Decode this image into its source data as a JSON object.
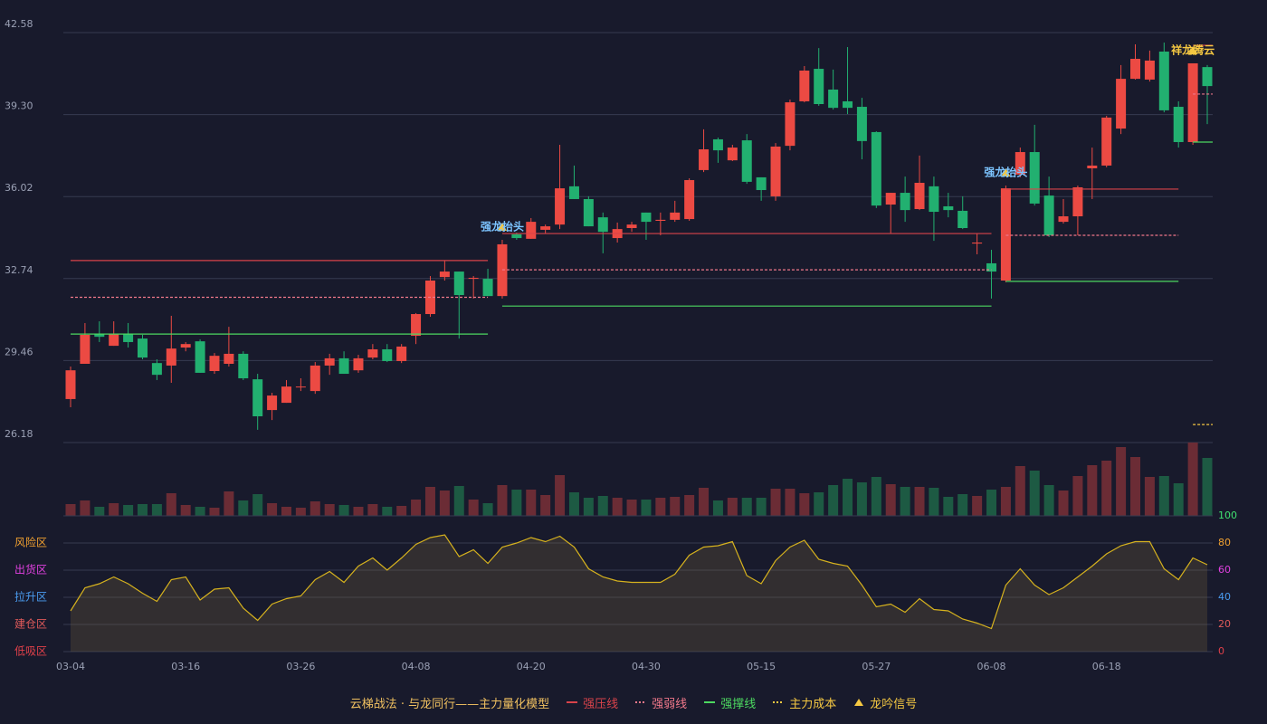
{
  "chart_data": {
    "type": "candlestick",
    "categories": [
      "03-04",
      null,
      null,
      null,
      null,
      null,
      null,
      null,
      "03-16",
      null,
      null,
      null,
      null,
      null,
      null,
      null,
      "03-26",
      null,
      null,
      null,
      null,
      null,
      null,
      null,
      "04-08",
      null,
      null,
      null,
      null,
      null,
      null,
      null,
      "04-20",
      null,
      null,
      null,
      null,
      null,
      null,
      null,
      "04-30",
      null,
      null,
      null,
      null,
      null,
      null,
      null,
      "05-15",
      null,
      null,
      null,
      null,
      null,
      null,
      null,
      "05-27",
      null,
      null,
      null,
      null,
      null,
      null,
      null,
      "06-08",
      null,
      null,
      null,
      null,
      null,
      null,
      null,
      "06-18",
      null,
      null,
      null,
      null,
      null,
      null,
      null
    ],
    "open": [
      27.92,
      29.33,
      30.52,
      30.05,
      30.52,
      30.34,
      29.36,
      29.26,
      29.98,
      30.23,
      29.04,
      29.33,
      29.73,
      28.71,
      27.48,
      27.77,
      28.39,
      28.24,
      29.26,
      29.55,
      29.07,
      29.58,
      29.91,
      29.44,
      30.45,
      31.32,
      32.8,
      33.02,
      32.73,
      32.73,
      32.04,
      34.51,
      34.33,
      34.69,
      34.9,
      36.43,
      35.92,
      35.19,
      34.36,
      34.76,
      35.38,
      35.05,
      35.09,
      35.12,
      37.08,
      38.31,
      37.47,
      38.27,
      36.79,
      36.03,
      38.05,
      39.83,
      41.13,
      40.3,
      39.83,
      39.61,
      38.6,
      35.7,
      36.17,
      35.52,
      36.43,
      35.63,
      35.45,
      34.14,
      33.35,
      32.66,
      36.9,
      37.8,
      36.06,
      35.01,
      35.23,
      37.15,
      37.26,
      38.74,
      40.73,
      40.7,
      41.82,
      39.61,
      38.2,
      41.2
    ],
    "high": [
      29.22,
      30.96,
      31.03,
      31.03,
      30.96,
      30.49,
      29.51,
      31.25,
      30.2,
      30.31,
      29.76,
      30.81,
      29.83,
      28.93,
      28.17,
      28.68,
      28.75,
      29.4,
      29.73,
      29.83,
      29.69,
      30.12,
      30.12,
      30.12,
      31.36,
      32.84,
      33.46,
      33.02,
      32.84,
      33.13,
      34.29,
      34.58,
      35.16,
      34.9,
      38.09,
      37.26,
      36.03,
      35.38,
      34.98,
      35.01,
      35.38,
      35.38,
      35.85,
      36.75,
      38.71,
      38.38,
      38.09,
      38.52,
      36.79,
      38.16,
      39.9,
      41.24,
      41.96,
      41.1,
      42.0,
      39.97,
      38.63,
      36.17,
      36.82,
      37.66,
      36.82,
      36.17,
      36.03,
      34.54,
      33.89,
      36.46,
      37.98,
      38.89,
      36.82,
      35.92,
      36.46,
      37.98,
      39.25,
      41.28,
      42.11,
      41.86,
      42.18,
      39.83,
      41.35,
      41.28
    ],
    "low": [
      27.59,
      29.33,
      30.2,
      30.05,
      29.98,
      29.51,
      28.68,
      28.57,
      29.83,
      28.97,
      28.93,
      29.22,
      28.68,
      26.69,
      27.08,
      27.77,
      28.24,
      28.13,
      28.89,
      28.93,
      28.97,
      29.51,
      29.4,
      29.36,
      30.12,
      31.21,
      32.66,
      30.34,
      31.94,
      32.04,
      31.94,
      34.29,
      34.33,
      34.54,
      34.72,
      35.92,
      34.83,
      33.75,
      34.18,
      34.61,
      34.29,
      34.47,
      35.01,
      35.05,
      37.0,
      37.37,
      37.44,
      36.53,
      35.85,
      35.85,
      37.87,
      39.79,
      39.65,
      39.5,
      39.32,
      37.51,
      35.56,
      34.54,
      35.01,
      35.48,
      34.25,
      35.19,
      34.72,
      33.71,
      31.94,
      32.59,
      36.79,
      35.66,
      34.4,
      34.94,
      34.47,
      35.92,
      37.19,
      38.52,
      40.7,
      40.62,
      39.39,
      37.98,
      38.09,
      38.92
    ],
    "close": [
      29.07,
      30.49,
      30.41,
      30.52,
      30.2,
      29.58,
      28.89,
      29.94,
      30.12,
      28.97,
      29.65,
      29.73,
      28.75,
      27.23,
      28.06,
      28.42,
      28.42,
      29.26,
      29.55,
      28.93,
      29.55,
      29.91,
      29.44,
      30.02,
      31.32,
      32.66,
      33.02,
      32.08,
      32.77,
      32.04,
      34.11,
      34.36,
      35.01,
      34.83,
      36.35,
      35.92,
      34.83,
      34.61,
      34.72,
      34.9,
      35.01,
      35.09,
      35.38,
      36.68,
      37.91,
      37.87,
      37.98,
      36.61,
      36.28,
      38.02,
      39.79,
      41.06,
      39.72,
      39.57,
      39.57,
      38.24,
      35.66,
      36.17,
      35.48,
      36.57,
      35.41,
      35.48,
      34.76,
      34.18,
      33.02,
      36.35,
      37.8,
      35.74,
      34.47,
      35.23,
      36.39,
      37.26,
      39.18,
      40.73,
      41.53,
      41.46,
      39.47,
      38.2,
      41.35,
      40.44
    ],
    "ylim": [
      26.18,
      42.58
    ],
    "yticks": [
      26.18,
      29.46,
      32.74,
      36.02,
      {
        "value": 39.3,
        "label": "39.30"
      },
      42.58
    ],
    "grid": true,
    "up_color": "#ec4a43",
    "down_color": "#22b070",
    "levels": [
      {
        "name": "强压线",
        "color": "#d8434a",
        "dashed": false,
        "values": [
          33.46,
          33.46,
          33.46,
          33.46,
          33.46,
          33.46,
          33.46,
          33.46,
          33.46,
          33.46,
          33.46,
          33.46,
          33.46,
          33.46,
          33.46,
          33.46,
          33.46,
          33.46,
          33.46,
          33.46,
          33.46,
          33.46,
          33.46,
          33.46,
          33.46,
          33.46,
          33.46,
          33.46,
          33.46,
          33.46,
          34.54,
          34.54,
          34.54,
          34.54,
          34.54,
          34.54,
          34.54,
          34.54,
          34.54,
          34.54,
          34.54,
          34.54,
          34.54,
          34.54,
          34.54,
          34.54,
          34.54,
          34.54,
          34.54,
          34.54,
          34.54,
          34.54,
          34.54,
          34.54,
          34.54,
          34.54,
          34.54,
          34.54,
          34.54,
          34.54,
          34.54,
          34.54,
          34.54,
          34.54,
          34.54,
          36.32,
          36.32,
          36.32,
          36.32,
          36.32,
          36.32,
          36.32,
          36.32,
          36.32,
          36.32,
          36.32,
          36.32,
          36.32,
          42.07,
          42.07
        ]
      },
      {
        "name": "强弱线",
        "color": "#f0788a",
        "dashed": true,
        "values": [
          31.99,
          31.99,
          31.99,
          31.99,
          31.99,
          31.99,
          31.99,
          31.99,
          31.99,
          31.99,
          31.99,
          31.99,
          31.99,
          31.99,
          31.99,
          31.99,
          31.99,
          31.99,
          31.99,
          31.99,
          31.99,
          31.99,
          31.99,
          31.99,
          31.99,
          31.99,
          31.99,
          31.99,
          31.99,
          31.99,
          33.09,
          33.09,
          33.09,
          33.09,
          33.09,
          33.09,
          33.09,
          33.09,
          33.09,
          33.09,
          33.09,
          33.09,
          33.09,
          33.09,
          33.09,
          33.09,
          33.09,
          33.09,
          33.09,
          33.09,
          33.09,
          33.09,
          33.09,
          33.09,
          33.09,
          33.09,
          33.09,
          33.09,
          33.09,
          33.09,
          33.09,
          33.09,
          33.09,
          33.09,
          33.09,
          34.47,
          34.47,
          34.47,
          34.47,
          34.47,
          34.47,
          34.47,
          34.47,
          34.47,
          34.47,
          34.47,
          34.47,
          34.47,
          40.12,
          40.12
        ]
      },
      {
        "name": "强撑线",
        "color": "#4cd860",
        "dashed": false,
        "values": [
          30.52,
          30.52,
          30.52,
          30.52,
          30.52,
          30.52,
          30.52,
          30.52,
          30.52,
          30.52,
          30.52,
          30.52,
          30.52,
          30.52,
          30.52,
          30.52,
          30.52,
          30.52,
          30.52,
          30.52,
          30.52,
          30.52,
          30.52,
          30.52,
          30.52,
          30.52,
          30.52,
          30.52,
          30.52,
          30.52,
          31.64,
          31.64,
          31.64,
          31.64,
          31.64,
          31.64,
          31.64,
          31.64,
          31.64,
          31.64,
          31.64,
          31.64,
          31.64,
          31.64,
          31.64,
          31.64,
          31.64,
          31.64,
          31.64,
          31.64,
          31.64,
          31.64,
          31.64,
          31.64,
          31.64,
          31.64,
          31.64,
          31.64,
          31.64,
          31.64,
          31.64,
          31.64,
          31.64,
          31.64,
          31.64,
          32.63,
          32.63,
          32.63,
          32.63,
          32.63,
          32.63,
          32.63,
          32.63,
          32.63,
          32.63,
          32.63,
          32.63,
          32.63,
          38.2,
          38.2
        ]
      },
      {
        "name": "主力成本",
        "color": "#f5c842",
        "dashed": true,
        "values": [
          null,
          null,
          null,
          null,
          null,
          null,
          null,
          null,
          null,
          null,
          null,
          null,
          null,
          null,
          null,
          null,
          null,
          null,
          null,
          null,
          null,
          null,
          null,
          null,
          null,
          null,
          null,
          null,
          null,
          null,
          null,
          null,
          null,
          null,
          null,
          null,
          null,
          null,
          null,
          null,
          null,
          null,
          null,
          null,
          null,
          null,
          null,
          null,
          null,
          null,
          null,
          null,
          null,
          null,
          null,
          null,
          null,
          null,
          null,
          null,
          null,
          null,
          null,
          null,
          null,
          null,
          null,
          null,
          null,
          null,
          null,
          null,
          null,
          null,
          null,
          null,
          null,
          null,
          26.9,
          26.9
        ]
      }
    ],
    "signals": {
      "name": "龙吟信号",
      "color": "#f5c842",
      "points": [
        {
          "index": 30,
          "text": "强龙抬头",
          "color": "#7cc4ff"
        },
        {
          "index": 65,
          "text": "强龙抬头",
          "color": "#7cc4ff"
        },
        {
          "index": 78,
          "text": "祥龙腾云",
          "color": "#f5c842"
        }
      ]
    },
    "volume": {
      "values": [
        13,
        17,
        10,
        14,
        12,
        13,
        13,
        25,
        12,
        10,
        9,
        27,
        17,
        24,
        14,
        10,
        9,
        16,
        13,
        12,
        10,
        13,
        10,
        11,
        18,
        32,
        28,
        33,
        18,
        14,
        34,
        29,
        29,
        23,
        45,
        26,
        20,
        22,
        20,
        18,
        18,
        20,
        21,
        23,
        31,
        17,
        20,
        20,
        20,
        30,
        30,
        25,
        26,
        34,
        41,
        37,
        43,
        35,
        32,
        32,
        31,
        21,
        24,
        22,
        29,
        32,
        55,
        50,
        34,
        28,
        44,
        56,
        61,
        76,
        65,
        43,
        44,
        36,
        81,
        64
      ],
      "up_color": "#6b2c35",
      "down_color": "#1d5a43"
    },
    "oscillator": {
      "type": "area",
      "values": [
        30,
        47,
        50,
        55,
        50,
        43,
        37,
        53,
        55,
        38,
        46,
        47,
        32,
        23,
        35,
        39,
        41,
        53,
        59,
        51,
        63,
        69,
        60,
        69,
        79,
        84,
        86,
        70,
        75,
        65,
        77,
        80,
        84,
        81,
        85,
        77,
        61,
        55,
        52,
        51,
        51,
        51,
        57,
        71,
        77,
        78,
        81,
        56,
        50,
        67,
        77,
        82,
        68,
        65,
        63,
        49,
        33,
        35,
        29,
        39,
        31,
        30,
        24,
        21,
        17,
        49,
        61,
        49,
        42,
        47,
        55,
        63,
        72,
        78,
        81,
        81,
        61,
        53,
        69,
        64
      ],
      "color": "#d6b21e",
      "ylim": [
        0,
        100
      ],
      "yticks": [
        0,
        20,
        40,
        60,
        80,
        100
      ],
      "ytick_colors": [
        "#e0404a",
        "#e05a5a",
        "#4a9cf0",
        "#e040e0",
        "#f0a030",
        "#40e070"
      ],
      "zones": [
        "低吸区",
        "建仓区",
        "拉升区",
        "出货区",
        "风险区"
      ],
      "zone_colors": [
        "#e0404a",
        "#e05a5a",
        "#4a9cf0",
        "#e040e0",
        "#f0a030"
      ]
    },
    "legend": {
      "title": "云梯战法 · 与龙同行——主力量化模型",
      "title_color": "#f0c060"
    }
  }
}
